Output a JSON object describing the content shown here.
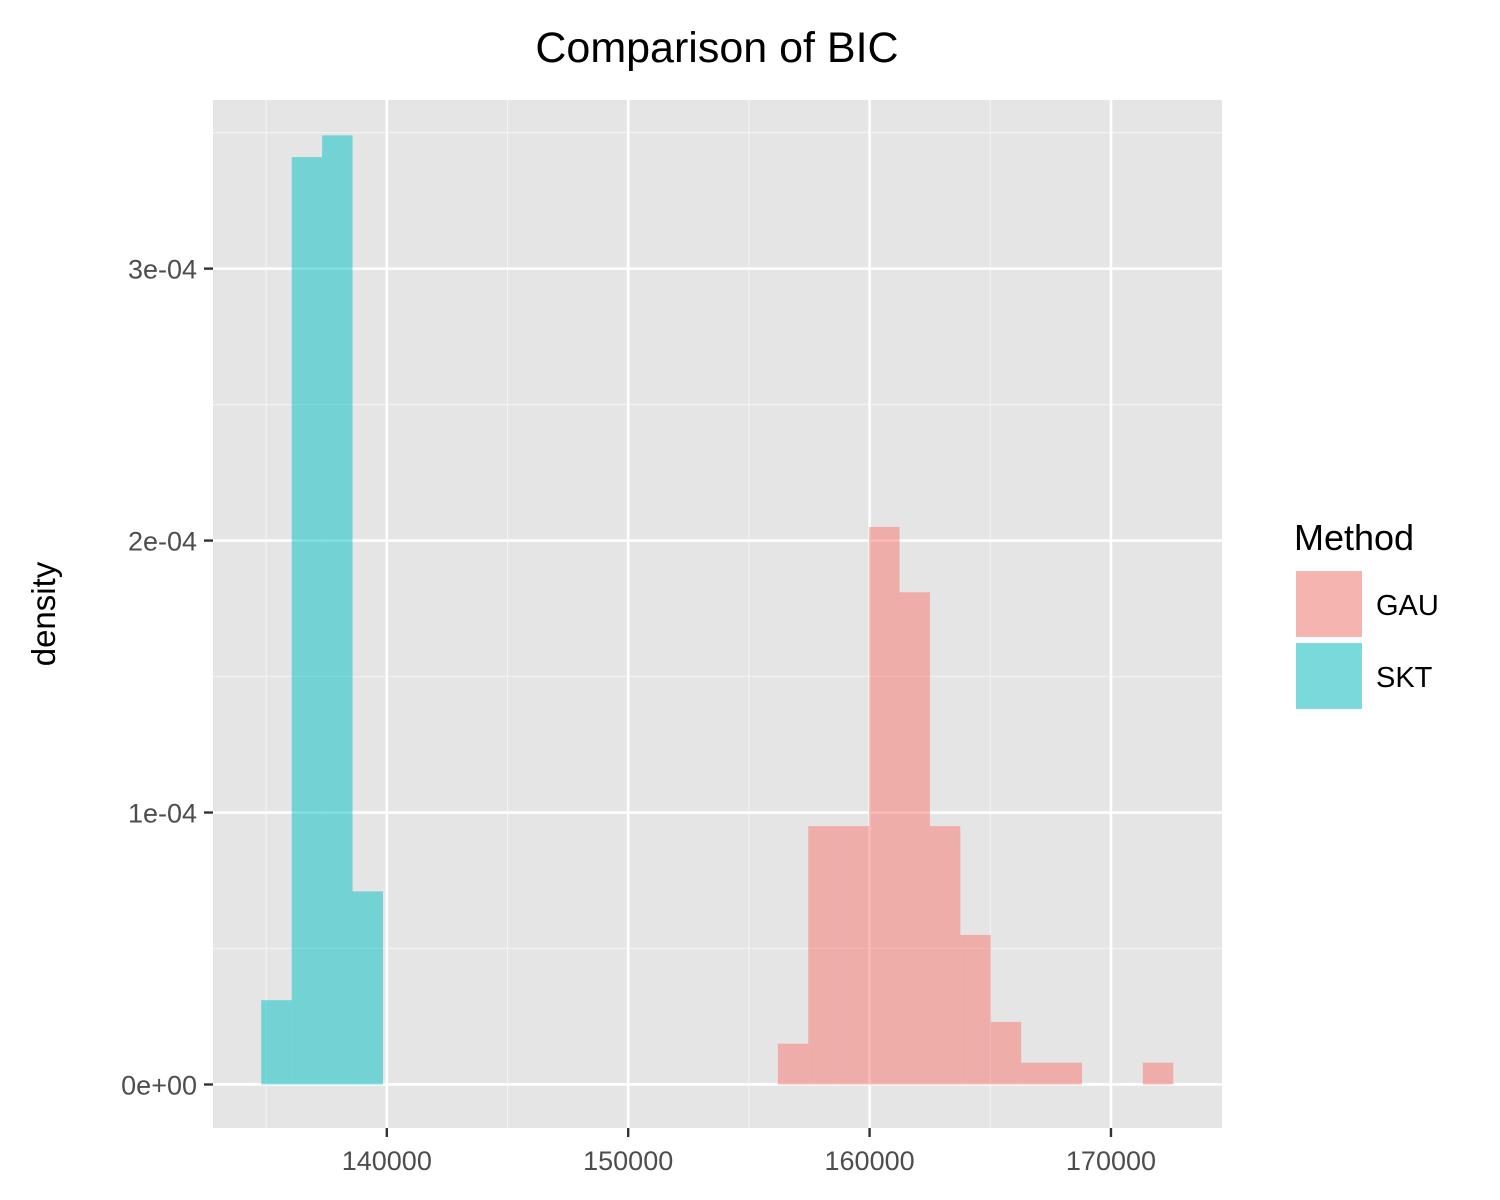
{
  "chart_data": {
    "type": "histogram",
    "title": "Comparison of BIC",
    "xlabel": "",
    "ylabel": "density",
    "xlim": [
      132800,
      174600
    ],
    "ylim": [
      -1.6e-05,
      0.000362
    ],
    "x_ticks": [
      140000,
      150000,
      160000,
      170000
    ],
    "x_tick_labels": [
      "140000",
      "150000",
      "160000",
      "170000"
    ],
    "y_ticks": [
      0,
      0.0001,
      0.0002,
      0.0003
    ],
    "y_tick_labels": [
      "0e+00",
      "1e-04",
      "2e-04",
      "3e-04"
    ],
    "grid": true,
    "legend": {
      "title": "Method",
      "position": "right"
    },
    "series": [
      {
        "name": "GAU",
        "color": "#F8766D",
        "bins": [
          {
            "x0": 156200,
            "x1": 157460,
            "density": 1.5e-05
          },
          {
            "x0": 157460,
            "x1": 158720,
            "density": 9.5e-05
          },
          {
            "x0": 158720,
            "x1": 159980,
            "density": 9.5e-05
          },
          {
            "x0": 159980,
            "x1": 161240,
            "density": 0.000205
          },
          {
            "x0": 161240,
            "x1": 162500,
            "density": 0.000181
          },
          {
            "x0": 162500,
            "x1": 163760,
            "density": 9.5e-05
          },
          {
            "x0": 163760,
            "x1": 165020,
            "density": 5.5e-05
          },
          {
            "x0": 165020,
            "x1": 166280,
            "density": 2.3e-05
          },
          {
            "x0": 166280,
            "x1": 167540,
            "density": 8e-06
          },
          {
            "x0": 167540,
            "x1": 168800,
            "density": 8e-06
          },
          {
            "x0": 171320,
            "x1": 172580,
            "density": 8e-06
          }
        ]
      },
      {
        "name": "SKT",
        "color": "#00BFC4",
        "bins": [
          {
            "x0": 134800,
            "x1": 136060,
            "density": 3.1e-05
          },
          {
            "x0": 136060,
            "x1": 137320,
            "density": 0.000341
          },
          {
            "x0": 137320,
            "x1": 138580,
            "density": 0.000349
          },
          {
            "x0": 138580,
            "x1": 139840,
            "density": 7.1e-05
          }
        ]
      }
    ]
  }
}
